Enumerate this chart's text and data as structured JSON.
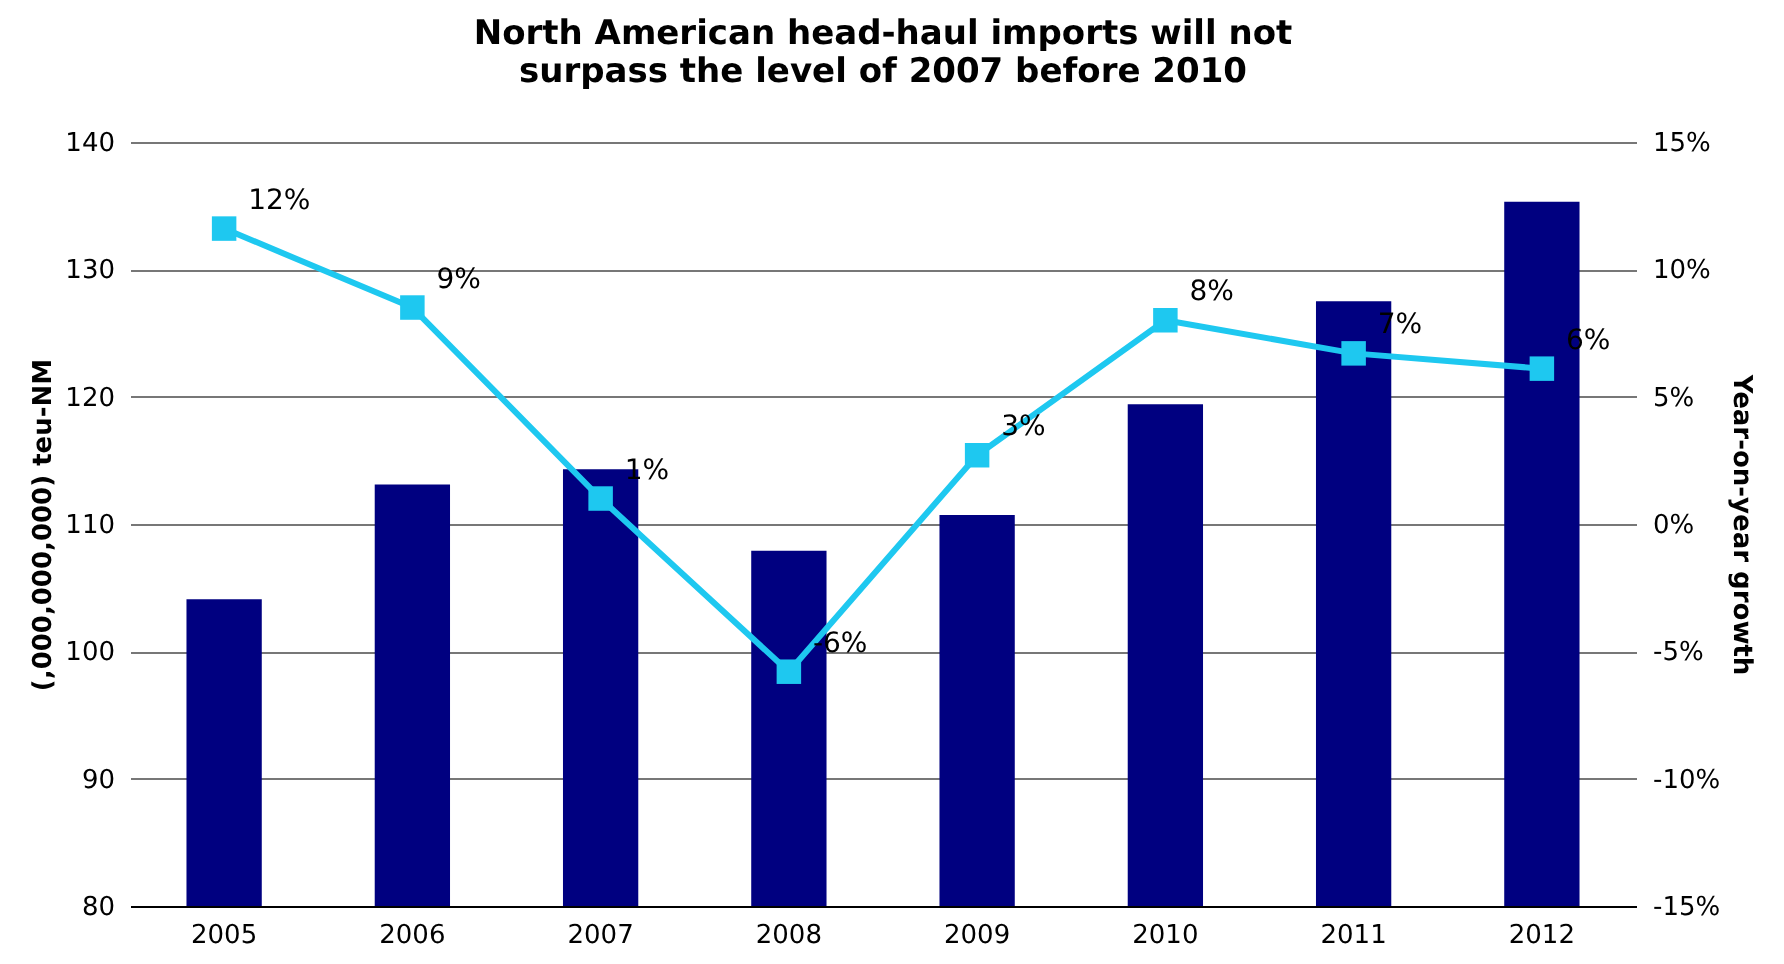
{
  "chart_data": {
    "type": "bar",
    "title": "North American head-haul imports will not surpass the level of 2007 before 2010",
    "ylabel": "(,000,000,000) teu-NM",
    "y2label": "Year-on-year growth",
    "categories": [
      "2005",
      "2006",
      "2007",
      "2008",
      "2009",
      "2010",
      "2011",
      "2012"
    ],
    "series": [
      {
        "color": "#000080",
        "values": [
          104.1,
          113.1,
          114.3,
          107.9,
          110.7,
          119.4,
          127.5,
          135.3
        ]
      },
      {
        "type": "line",
        "axis": "y2",
        "color": "#1ec8f0",
        "marker": "square",
        "values": [
          11.6,
          8.5,
          1.0,
          -5.8,
          2.7,
          8.0,
          6.7,
          6.1
        ],
        "value_labels": [
          "12%",
          "9%",
          "1%",
          "-6%",
          "3%",
          "8%",
          "7%",
          "6%"
        ]
      }
    ],
    "ylim": [
      80,
      140
    ],
    "yticks": [
      80,
      90,
      100,
      110,
      120,
      130,
      140
    ],
    "y2lim": [
      -15,
      15
    ],
    "y2ticks": [
      {
        "value": -15,
        "label": "-15%"
      },
      {
        "value": -10,
        "label": "-10%"
      },
      {
        "value": -5,
        "label": "-5%"
      },
      {
        "value": 0,
        "label": "0%"
      },
      {
        "value": 5,
        "label": "5%"
      },
      {
        "value": 10,
        "label": "10%"
      },
      {
        "value": 15,
        "label": "15%"
      }
    ],
    "grid": "y"
  }
}
